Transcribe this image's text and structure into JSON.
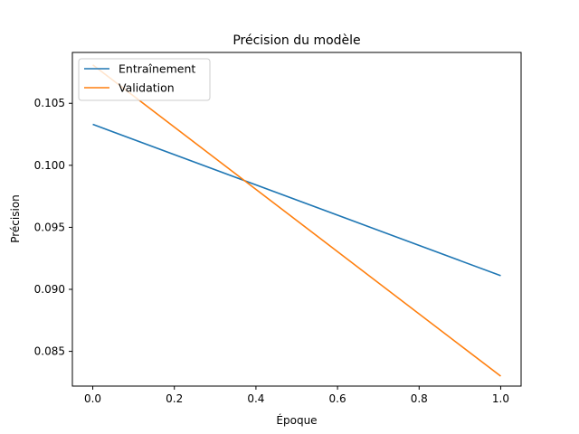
{
  "chart_data": {
    "type": "line",
    "title": "Précision du modèle",
    "xlabel": "Époque",
    "ylabel": "Précision",
    "xlim": [
      -0.05,
      1.05
    ],
    "ylim": [
      0.0822,
      0.1091
    ],
    "xticks": [
      0.0,
      0.2,
      0.4,
      0.6,
      0.8,
      1.0
    ],
    "xtick_labels": [
      "0.0",
      "0.2",
      "0.4",
      "0.6",
      "0.8",
      "1.0"
    ],
    "yticks": [
      0.085,
      0.09,
      0.095,
      0.1,
      0.105
    ],
    "ytick_labels": [
      "0.085",
      "0.090",
      "0.095",
      "0.100",
      "0.105"
    ],
    "legend_position": "top-left",
    "grid": false,
    "series": [
      {
        "name": "Entraînement",
        "color": "#1f77b4",
        "x": [
          0,
          1
        ],
        "y": [
          0.1033,
          0.0911
        ]
      },
      {
        "name": "Validation",
        "color": "#ff7f0e",
        "x": [
          0,
          1
        ],
        "y": [
          0.1081,
          0.083
        ]
      }
    ]
  }
}
